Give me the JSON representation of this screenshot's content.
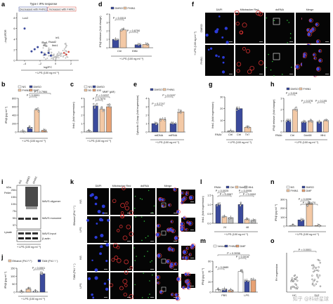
{
  "colors": {
    "dmso": "#3b4a9c",
    "fhin1": "#f3c9a6",
    "dmf": "#e8a274",
    "ns": "#ffffff",
    "grey": "#bdbdbd",
    "volc_down": "#3b4a9c",
    "volc_up": "#d1493f",
    "volc_ns": "#bdbdbd",
    "micro_bg": "#050505"
  },
  "watermark": "知乎 @科研星球",
  "panels": {
    "a": {
      "label": "a",
      "title": "Type I IFN response",
      "legend_down": "Decreased with FHIN1",
      "legend_up": "Increased with FHIN1",
      "ylabel": "–log10FDR",
      "xlabel": "log2FC",
      "footer": "+ LPS (100 ng ml⁻¹)",
      "genes": [
        "Lcn2",
        "Irf1",
        "Stat1",
        "Rsad2",
        "Ifnb1",
        "Ifit1"
      ],
      "xticks": [
        "–4",
        "–2",
        "0",
        "2"
      ],
      "yticks": [
        "0",
        "2",
        "4",
        "6",
        "8"
      ]
    },
    "b": {
      "label": "b",
      "legend": [
        "NS",
        "DMSO",
        "FHIN1",
        "DMF"
      ],
      "ylabel": "IFNβ (pg ml⁻¹)",
      "yticks": [
        "0",
        "200",
        "400",
        "600",
        "800"
      ],
      "pvals": [
        "P = 0.7984",
        "P < 0.0001"
      ],
      "footer": "+ LPS (100 ng ml⁻¹)",
      "bars": [
        20,
        110,
        520,
        40
      ]
    },
    "c": {
      "label": "c",
      "legend": [
        "NS",
        "DMSO",
        "50",
        "100"
      ],
      "legend_unit": "MMF (μM)",
      "ylabel": "Ifnb1 (fold expression)",
      "yticks": [
        "0",
        "1",
        "2",
        "3",
        "4"
      ],
      "pvals": [
        "P = 0.0237",
        "P = 0.7870"
      ],
      "footer": "+ LPS (100 ng ml⁻¹)",
      "bars": [
        0.1,
        3.1,
        2.7,
        3.0
      ]
    },
    "d": {
      "label": "d",
      "legend": [
        "DMSO",
        "FHIN1"
      ],
      "ylabel": "IFNβ release (fold change)",
      "yticks": [
        "0",
        "1",
        "2",
        "3",
        "4"
      ],
      "pvals": [
        "P = 0.0313",
        "P = 0.8750"
      ],
      "groups": [
        "Ctrl",
        "Elf6r"
      ],
      "footer": "+ LPS (100 ng ml⁻¹)",
      "bars": [
        1.0,
        2.1,
        0.35,
        0.4
      ]
    },
    "e": {
      "label": "e",
      "legend": [
        "DMSO",
        "FHIN1"
      ],
      "ylabel": "Cytosolic D-loop (fold expression)",
      "yticks": [
        "0",
        "1",
        "2",
        "3",
        "4"
      ],
      "pvals": [
        "P = 0.2747",
        "P = 0.0157"
      ],
      "groups": [
        "mtDNA",
        "mtRNA"
      ],
      "footer": "+ LPS (100 ng ml⁻¹)",
      "bars": [
        1.0,
        1.5,
        1.0,
        2.4
      ]
    },
    "f": {
      "label": "f",
      "cols": [
        "DAPI",
        "Mitotracker Red",
        "dsRNA",
        "Merge"
      ],
      "rows": [
        "DMSO",
        "FHIN1"
      ],
      "side": "+ LPS (100 ng ml⁻¹)"
    },
    "g": {
      "label": "g",
      "ylabel": "Ifnb1 (fold expression)",
      "yticks": [
        "0",
        "10",
        "20",
        "30"
      ],
      "rnai_label": "RNAi:",
      "groups": [
        "Ctrl",
        "Ctrl",
        "Tlr7"
      ],
      "footer": "+ LPS (100 ng ml⁻¹)",
      "bars": [
        1,
        20,
        4
      ]
    },
    "h": {
      "label": "h",
      "legend": [
        "DMSO",
        "FHIN1"
      ],
      "ylabel": "IFNβ release (fold change)",
      "yticks": [
        "0",
        "1",
        "2",
        "3"
      ],
      "pvals": [
        "P = 0.016",
        "P = 0.078",
        "P = 0.105"
      ],
      "rnai_label": "RNAi:",
      "groups": [
        "Ctrl",
        "Ddx58",
        "Ifih1"
      ],
      "footer": "+ LPS (100 ng ml⁻¹)",
      "bars": [
        1.0,
        2.0,
        0.9,
        1.0,
        0.9,
        1.0
      ]
    },
    "i": {
      "label": "i",
      "kda": "kDa",
      "pellet": "Pellet",
      "lane_labels": [
        "NS",
        "DMSO",
        "FHIN1"
      ],
      "marks": [
        "250",
        "150",
        "100",
        "75",
        "50",
        "37"
      ],
      "bands": [
        "MAVS oligomer",
        "MAVS monomer"
      ],
      "lysate": "Lysate",
      "lysate_bands": [
        "MAVS input",
        "β-actin"
      ],
      "footer": "+ LPS (100 ng ml⁻¹)"
    },
    "j": {
      "label": "j",
      "legend": [
        "Ethanol (Fh1⁺/⁺)",
        "TAM (Fh1⁻/⁻)"
      ],
      "ylabel": "IFNβ (pg ml⁻¹)",
      "yticks": [
        "0",
        "50",
        "100",
        "150"
      ],
      "pvals": [
        "P = 0.0001"
      ],
      "footer": "+ LPS (100 ng ml⁻¹)",
      "bars": [
        2,
        20,
        5,
        115
      ]
    },
    "k": {
      "label": "k",
      "cols": [
        "DAPI",
        "Mitotracker Red",
        "dsRNA",
        "Merge"
      ],
      "rows": [
        "NS",
        "LPS",
        "NS",
        "LPS"
      ],
      "groups": [
        "Ethanol (Fh1⁺/⁺)",
        "TAM (Fh1⁻/⁻)"
      ]
    },
    "l": {
      "label": "l",
      "rnai_label": "RNAi:",
      "legend": [
        "Ctrl",
        "Ddx58",
        "Ifih1"
      ],
      "ylabel": "Ifnb1 (fold expression)",
      "yticks": [
        "0.0",
        "0.5",
        "1.0",
        "1.5"
      ],
      "pvals": [
        "P = 0.0025",
        "P = 0.0067",
        "P = 0.0006",
        "P = 0.0002"
      ],
      "xticks": [
        "24",
        "48"
      ],
      "footer": "+ LPS (100 ng ml⁻¹)",
      "bars": [
        1.0,
        0.35,
        0.3,
        1.0,
        0.2,
        0.15
      ]
    },
    "m": {
      "label": "m",
      "legend": [
        "Vehicle",
        "FHIN1",
        "DMF"
      ],
      "ylabel": "IFNβ (pg ml⁻¹)",
      "yticks": [
        "0",
        "20",
        "40",
        "60"
      ],
      "pvals": [
        "P = 0.3936",
        "P = 0.0016",
        "P = 0.0689",
        "P = 0.0689",
        "P = 0.02"
      ],
      "groups": [
        "PBS",
        "LPS"
      ]
    },
    "n": {
      "label": "n",
      "legend": [
        "NS",
        "DMSO",
        "FHIN1",
        "DMF"
      ],
      "ylabel": "IFNβ (pg ml⁻¹)",
      "yticks": [
        "0",
        "100",
        "200",
        "300"
      ],
      "pvals": [
        "P = 0.0096",
        "P = 0.0470"
      ],
      "footer": "+ LPS (100 ng ml⁻¹)",
      "bars": [
        5,
        70,
        250,
        5
      ]
    },
    "o": {
      "label": "o",
      "ylabel": "FH expression",
      "pvals": [
        "P < 0.0001"
      ],
      "groups": [
        "HC",
        "SLE"
      ]
    }
  }
}
